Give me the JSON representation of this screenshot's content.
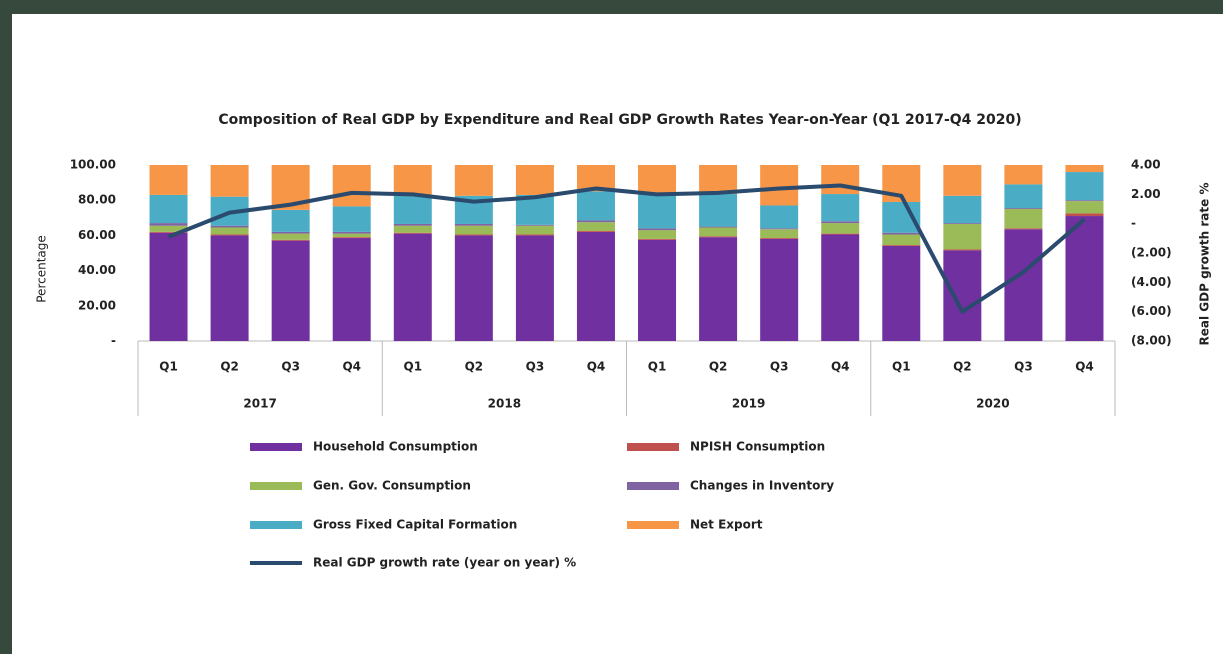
{
  "chart_data": {
    "type": "bar",
    "title": "Composition of Real GDP by Expenditure and Real GDP  Growth Rates Year-on-Year (Q1 2017-Q4 2020)",
    "y_label": "Percentage",
    "y2_label": "Real GDP growth rate %",
    "categories": [
      "Q1",
      "Q2",
      "Q3",
      "Q4",
      "Q1",
      "Q2",
      "Q3",
      "Q4",
      "Q1",
      "Q2",
      "Q3",
      "Q4",
      "Q1",
      "Q2",
      "Q3",
      "Q4"
    ],
    "groups": [
      "2017",
      "2018",
      "2019",
      "2020"
    ],
    "stacked": true,
    "ylim": [
      0,
      100
    ],
    "yticks": [
      {
        "value": 0,
        "label": "-"
      },
      {
        "value": 20,
        "label": "20.00"
      },
      {
        "value": 40,
        "label": "40.00"
      },
      {
        "value": 60,
        "label": "60.00"
      },
      {
        "value": 80,
        "label": "80.00"
      },
      {
        "value": 100,
        "label": "100.00"
      }
    ],
    "y2lim": [
      -8,
      4
    ],
    "y2ticks": [
      {
        "value": -8,
        "label": "(8.00)"
      },
      {
        "value": -6,
        "label": "(6.00)"
      },
      {
        "value": -4,
        "label": "(4.00)"
      },
      {
        "value": -2,
        "label": "(2.00)"
      },
      {
        "value": 0,
        "label": "-"
      },
      {
        "value": 2,
        "label": "2.00"
      },
      {
        "value": 4,
        "label": "4.00"
      }
    ],
    "series": [
      {
        "name": "Household Consumption",
        "color": "#7030a0",
        "values": [
          61.5,
          60,
          57,
          58.5,
          61,
          60,
          60,
          62,
          57.5,
          59,
          58,
          60.5,
          54,
          51.5,
          63.5,
          71
        ]
      },
      {
        "name": "NPISH Consumption",
        "color": "#c0504d",
        "values": [
          0.5,
          0.5,
          0.5,
          0.5,
          0.5,
          0.5,
          0.5,
          0.5,
          0.5,
          0.5,
          0.5,
          0.5,
          0.5,
          0.5,
          0.5,
          1.5
        ]
      },
      {
        "name": "Gen. Gov. Consumption",
        "color": "#9bbb59",
        "values": [
          3.5,
          4,
          3.5,
          2,
          4,
          5,
          5,
          5,
          5,
          5,
          5,
          6,
          6,
          14.5,
          11,
          7
        ]
      },
      {
        "name": "Changes in Inventory",
        "color": "#8064a2",
        "values": [
          1.5,
          1,
          1,
          1,
          1,
          1,
          0.5,
          1,
          1,
          0.5,
          0.5,
          1,
          1,
          0.5,
          0.5,
          0.5
        ]
      },
      {
        "name": "Gross Fixed Capital Formation",
        "color": "#4bacc6",
        "values": [
          16,
          16.5,
          12.5,
          14.5,
          16,
          16,
          17,
          16.5,
          19.5,
          18.5,
          13,
          15.5,
          17.5,
          15.5,
          13.5,
          16
        ]
      },
      {
        "name": "Net Export",
        "color": "#f79646",
        "values": [
          17,
          18,
          25.5,
          23.5,
          17.5,
          17.5,
          17,
          15,
          16.5,
          16.5,
          23,
          16.5,
          21,
          17.5,
          11,
          4
        ]
      },
      {
        "name": "Real GDP growth rate  (year on year) %",
        "color": "#2a4a6e",
        "type": "line",
        "axis": "y2",
        "values": [
          -0.9,
          0.75,
          1.3,
          2.1,
          2.0,
          1.5,
          1.8,
          2.4,
          2.0,
          2.1,
          2.4,
          2.6,
          1.9,
          -6.0,
          -3.3,
          0.3
        ]
      }
    ]
  }
}
